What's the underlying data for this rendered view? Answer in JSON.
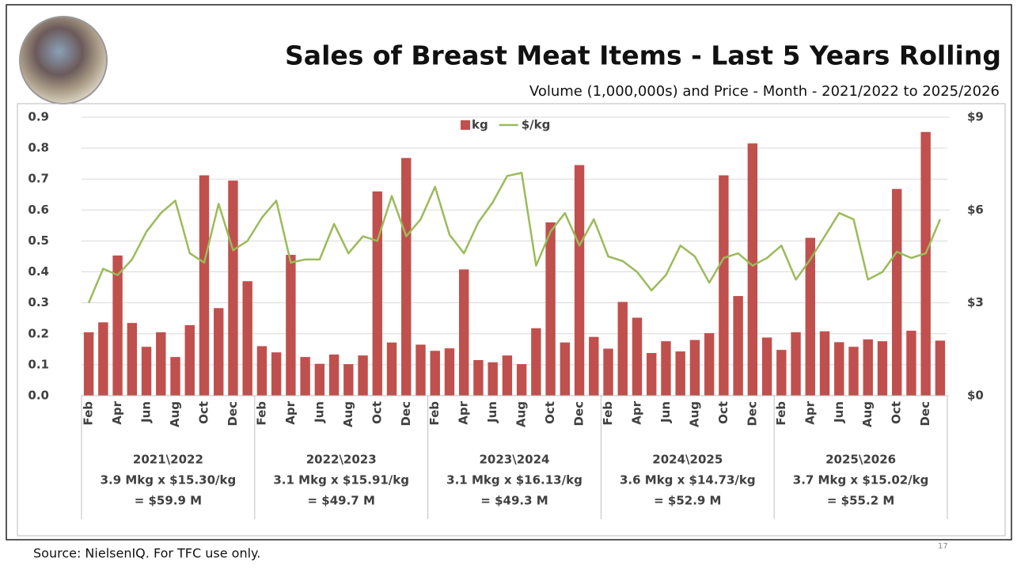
{
  "chart_data": {
    "type": "combo",
    "title": "Sales of Breast Meat Items - Last 5 Years Rolling",
    "subtitle": "Volume (1,000,000s) and Price - Month - 2021/2022 to 2025/2026",
    "categories": [
      "Feb",
      null,
      "Apr",
      null,
      "Jun",
      null,
      "Aug",
      null,
      "Oct",
      null,
      "Dec",
      null,
      "Feb",
      null,
      "Apr",
      null,
      "Jun",
      null,
      "Aug",
      null,
      "Oct",
      null,
      "Dec",
      null,
      "Feb",
      null,
      "Apr",
      null,
      "Jun",
      null,
      "Aug",
      null,
      "Oct",
      null,
      "Dec",
      null,
      "Feb",
      null,
      "Apr",
      null,
      "Jun",
      null,
      "Aug",
      null,
      "Oct",
      null,
      "Dec",
      null,
      "Feb",
      null,
      "Apr",
      null,
      "Jun",
      null,
      "Aug",
      null,
      "Oct",
      null,
      "Dec",
      null
    ],
    "groups": [
      {
        "lines": [
          "2021\\2022",
          "3.9 Mkg x $15.30/kg",
          "= $59.9 M"
        ]
      },
      {
        "lines": [
          "2022\\2023",
          "3.1 Mkg x $15.91/kg",
          "= $49.7 M"
        ]
      },
      {
        "lines": [
          "2023\\2024",
          "3.1 Mkg x $16.13/kg",
          "= $49.3 M"
        ]
      },
      {
        "lines": [
          "2024\\2025",
          "3.6 Mkg x $14.73/kg",
          "= $52.9 M"
        ]
      },
      {
        "lines": [
          "2025\\2026",
          "3.7 Mkg x $15.02/kg",
          "= $55.2 M"
        ]
      }
    ],
    "series": [
      {
        "name": "kg",
        "type": "bar",
        "color": "#c0504d",
        "values": [
          0.205,
          0.237,
          0.453,
          0.235,
          0.158,
          0.205,
          0.125,
          0.228,
          0.712,
          0.283,
          0.695,
          0.37,
          0.16,
          0.14,
          0.455,
          0.125,
          0.103,
          0.133,
          0.102,
          0.13,
          0.66,
          0.172,
          0.768,
          0.165,
          0.145,
          0.153,
          0.408,
          0.115,
          0.108,
          0.13,
          0.102,
          0.218,
          0.56,
          0.172,
          0.745,
          0.19,
          0.152,
          0.303,
          0.252,
          0.138,
          0.176,
          0.143,
          0.18,
          0.202,
          0.712,
          0.322,
          0.815,
          0.188,
          0.148,
          0.205,
          0.51,
          0.208,
          0.173,
          0.158,
          0.182,
          0.176,
          0.668,
          0.21,
          0.852,
          0.178
        ]
      },
      {
        "name": "$/kg",
        "type": "line",
        "axis": "y2",
        "color": "#9bbb59",
        "values": [
          3.0,
          4.1,
          3.9,
          4.4,
          5.3,
          5.9,
          6.3,
          4.6,
          4.3,
          6.2,
          4.7,
          5.0,
          5.75,
          6.3,
          4.3,
          4.4,
          4.4,
          5.55,
          4.6,
          5.15,
          5.0,
          6.45,
          5.15,
          5.7,
          6.75,
          5.2,
          4.6,
          5.6,
          6.25,
          7.1,
          7.2,
          4.2,
          5.3,
          5.9,
          4.85,
          5.7,
          4.5,
          4.35,
          4.0,
          3.4,
          3.9,
          4.85,
          4.5,
          3.65,
          4.45,
          4.6,
          4.2,
          4.45,
          4.85,
          3.75,
          4.4,
          5.15,
          5.9,
          5.7,
          3.75,
          4.0,
          4.65,
          4.45,
          4.6,
          5.7
        ]
      }
    ],
    "ylim": [
      0,
      0.9
    ],
    "yticks": [
      {
        "value": 0,
        "label": "0.0"
      },
      0.1,
      0.2,
      0.3,
      0.4,
      0.5,
      0.6,
      0.7,
      0.8,
      0.9
    ],
    "y2lim": [
      0,
      9
    ],
    "y2ticks": [
      {
        "value": 0,
        "label": "$0"
      },
      {
        "value": 3,
        "label": "$3"
      },
      {
        "value": 6,
        "label": "$6"
      },
      {
        "value": 9,
        "label": "$9"
      }
    ],
    "grid": true
  },
  "source": "Source: NielsenIQ.  For TFC use only.",
  "page_number": 17
}
